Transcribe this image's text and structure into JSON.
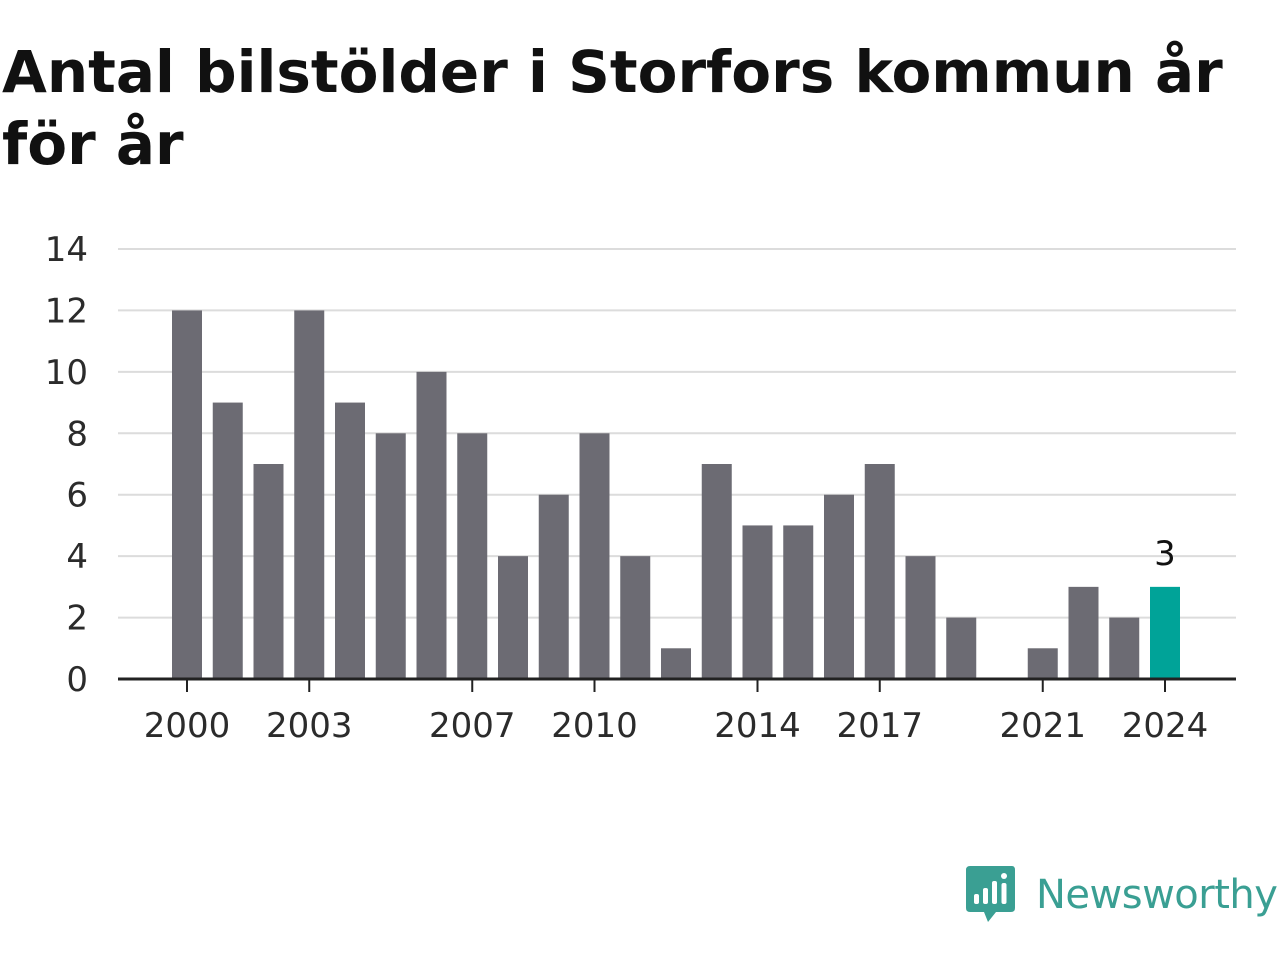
{
  "title": "Antal bilstölder i Storfors kommun år för år",
  "brand": {
    "name": "Newsworthy",
    "icon": "newsworthy-logo-icon",
    "color": "#3a9f93"
  },
  "colors": {
    "bar": "#6c6b73",
    "highlight": "#00a398",
    "grid": "#dcdcdc",
    "axis": "#222222"
  },
  "chart_data": {
    "type": "bar",
    "categories": [
      "2000",
      "2001",
      "2002",
      "2003",
      "2004",
      "2005",
      "2006",
      "2007",
      "2008",
      "2009",
      "2010",
      "2011",
      "2012",
      "2013",
      "2014",
      "2015",
      "2016",
      "2017",
      "2018",
      "2019",
      "2020",
      "2021",
      "2022",
      "2023",
      "2024"
    ],
    "values": [
      12,
      9,
      7,
      12,
      9,
      8,
      10,
      8,
      4,
      6,
      8,
      4,
      1,
      7,
      5,
      5,
      6,
      7,
      4,
      2,
      0,
      1,
      3,
      2,
      3
    ],
    "x_tick_labels": [
      "2000",
      "2003",
      "2007",
      "2010",
      "2014",
      "2017",
      "2021",
      "2024"
    ],
    "y_ticks": [
      "0",
      "2",
      "4",
      "6",
      "8",
      "10",
      "12",
      "14"
    ],
    "ylim": [
      0,
      14
    ],
    "grid": true,
    "highlight": {
      "category": "2024",
      "label": "3"
    }
  }
}
